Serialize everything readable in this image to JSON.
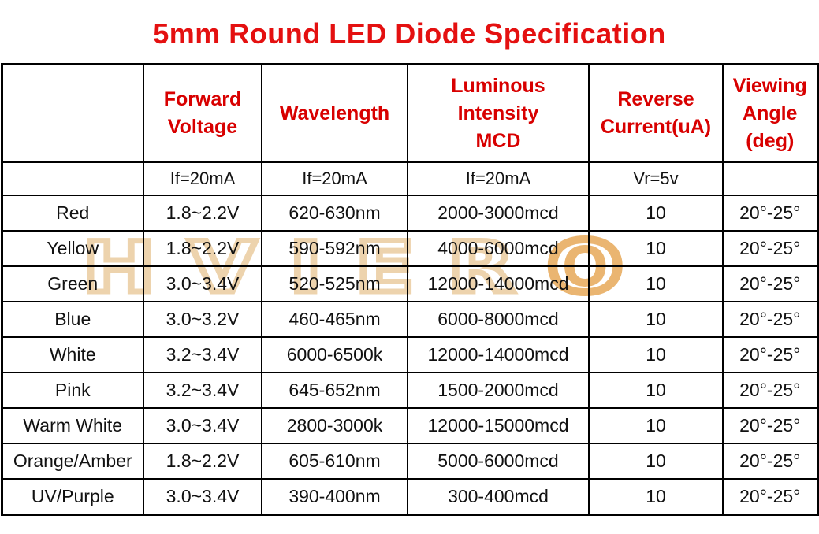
{
  "title": "5mm Round LED Diode Specification",
  "watermark": "HVIERO",
  "colors": {
    "title_red": "#e41010",
    "header_red": "#d80000",
    "body_text": "#111111",
    "watermark_tan": "#eccfa5",
    "watermark_orange": "#e8ae62",
    "border_black": "#000000",
    "background": "#ffffff"
  },
  "table": {
    "columns": [
      {
        "label": "",
        "sub": ""
      },
      {
        "label": "Forward\nVoltage",
        "sub": "If=20mA"
      },
      {
        "label": "Wavelength",
        "sub": "If=20mA"
      },
      {
        "label": "Luminous\nIntensity\nMCD",
        "sub": "If=20mA"
      },
      {
        "label": "Reverse\nCurrent(uA)",
        "sub": "Vr=5v"
      },
      {
        "label": "Viewing\nAngle\n(deg)",
        "sub": ""
      }
    ],
    "rows": [
      {
        "color": "Red",
        "forward_voltage": "1.8~2.2V",
        "wavelength": "620-630nm",
        "luminous_intensity": "2000-3000mcd",
        "reverse_current": "10",
        "viewing_angle": "20°-25°"
      },
      {
        "color": "Yellow",
        "forward_voltage": "1.8~2.2V",
        "wavelength": "590-592nm",
        "luminous_intensity": "4000-6000mcd",
        "reverse_current": "10",
        "viewing_angle": "20°-25°"
      },
      {
        "color": "Green",
        "forward_voltage": "3.0~3.4V",
        "wavelength": "520-525nm",
        "luminous_intensity": "12000-14000mcd",
        "reverse_current": "10",
        "viewing_angle": "20°-25°"
      },
      {
        "color": "Blue",
        "forward_voltage": "3.0~3.2V",
        "wavelength": "460-465nm",
        "luminous_intensity": "6000-8000mcd",
        "reverse_current": "10",
        "viewing_angle": "20°-25°"
      },
      {
        "color": "White",
        "forward_voltage": "3.2~3.4V",
        "wavelength": "6000-6500k",
        "luminous_intensity": "12000-14000mcd",
        "reverse_current": "10",
        "viewing_angle": "20°-25°"
      },
      {
        "color": "Pink",
        "forward_voltage": "3.2~3.4V",
        "wavelength": "645-652nm",
        "luminous_intensity": "1500-2000mcd",
        "reverse_current": "10",
        "viewing_angle": "20°-25°"
      },
      {
        "color": "Warm White",
        "forward_voltage": "3.0~3.4V",
        "wavelength": "2800-3000k",
        "luminous_intensity": "12000-15000mcd",
        "reverse_current": "10",
        "viewing_angle": "20°-25°"
      },
      {
        "color": "Orange/Amber",
        "forward_voltage": "1.8~2.2V",
        "wavelength": "605-610nm",
        "luminous_intensity": "5000-6000mcd",
        "reverse_current": "10",
        "viewing_angle": "20°-25°"
      },
      {
        "color": "UV/Purple",
        "forward_voltage": "3.0~3.4V",
        "wavelength": "390-400nm",
        "luminous_intensity": "300-400mcd",
        "reverse_current": "10",
        "viewing_angle": "20°-25°"
      }
    ]
  }
}
